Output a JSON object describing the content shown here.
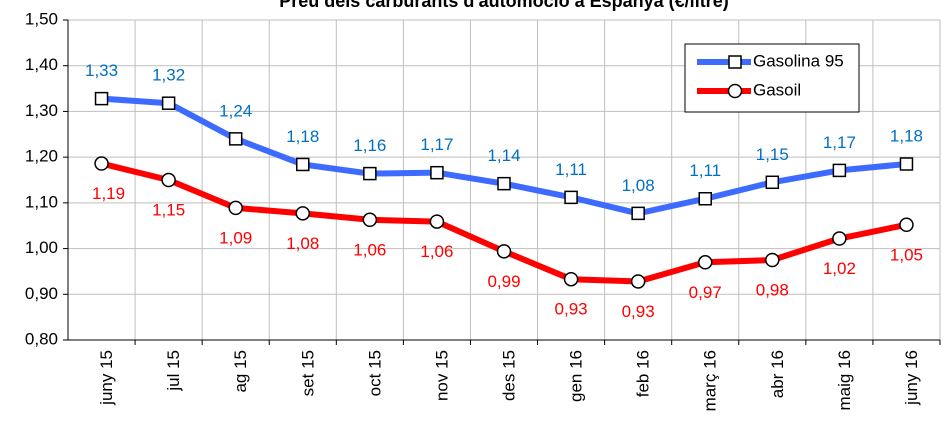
{
  "chart_data": {
    "type": "line",
    "title": "Preu dels carburants d'automoció a Espanya (€/litre)",
    "categories": [
      "juny 15",
      "jul 15",
      "ag 15",
      "set 15",
      "oct 15",
      "nov 15",
      "des 15",
      "gen 16",
      "feb 16",
      "març 16",
      "abr 16",
      "maig 16",
      "juny 16"
    ],
    "series": [
      {
        "name": "Gasolina 95",
        "color": "#3d6bff",
        "label_color": "#0070c0",
        "marker": "square",
        "values": [
          1.328,
          1.318,
          1.24,
          1.184,
          1.164,
          1.166,
          1.142,
          1.112,
          1.077,
          1.109,
          1.145,
          1.171,
          1.185
        ],
        "value_labels": [
          "1,33",
          "1,32",
          "1,24",
          "1,18",
          "1,16",
          "1,17",
          "1,14",
          "1,11",
          "1,08",
          "1,11",
          "1,15",
          "1,17",
          "1,18"
        ]
      },
      {
        "name": "Gasoil",
        "color": "#ff0000",
        "label_color": "#ff0000",
        "marker": "circle",
        "values": [
          1.186,
          1.15,
          1.089,
          1.077,
          1.063,
          1.059,
          0.994,
          0.933,
          0.928,
          0.97,
          0.975,
          1.022,
          1.052
        ],
        "value_labels": [
          "1,19",
          "1,15",
          "1,09",
          "1,08",
          "1,06",
          "1,06",
          "0,99",
          "0,93",
          "0,93",
          "0,97",
          "0,98",
          "1,02",
          "1,05"
        ]
      }
    ],
    "ylim": [
      0.8,
      1.5
    ],
    "yticks": [
      {
        "value": 0.8,
        "label": "0,80"
      },
      {
        "value": 0.9,
        "label": "0,90"
      },
      {
        "value": 1.0,
        "label": "1,00"
      },
      {
        "value": 1.1,
        "label": "1,10"
      },
      {
        "value": 1.2,
        "label": "1,20"
      },
      {
        "value": 1.3,
        "label": "1,30"
      },
      {
        "value": 1.4,
        "label": "1,40"
      },
      {
        "value": 1.5,
        "label": "1,50"
      }
    ],
    "grid": true,
    "legend": "upper right"
  }
}
